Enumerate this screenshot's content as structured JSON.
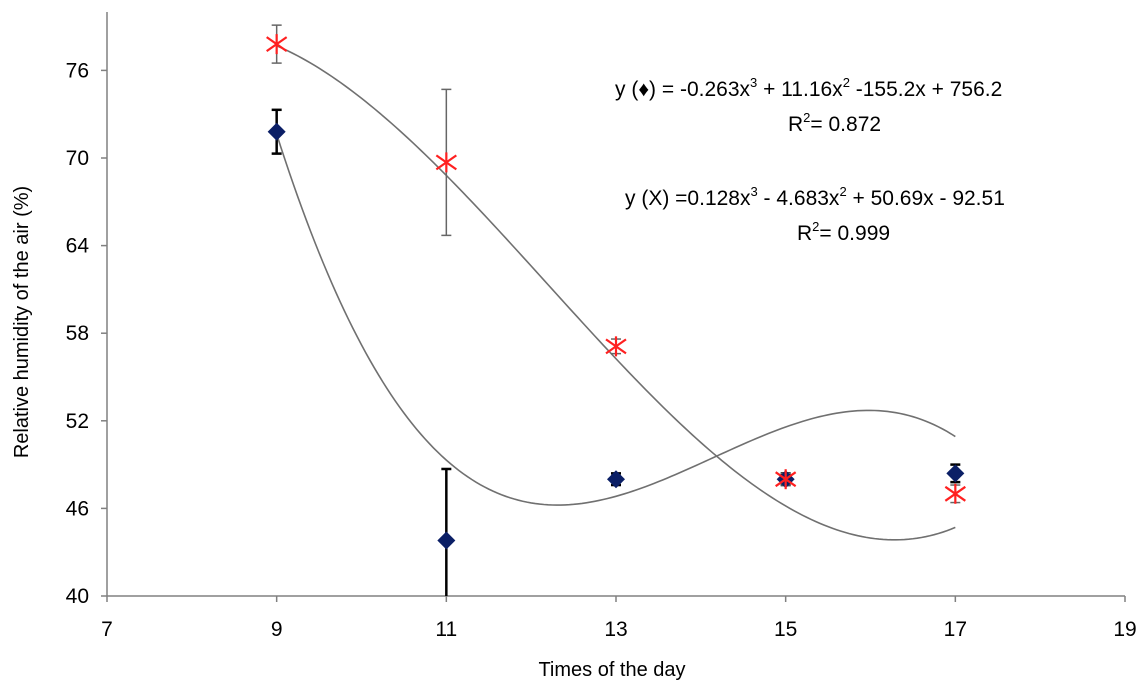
{
  "chart_data": {
    "type": "scatter",
    "title": "",
    "xlabel": "Times of the day",
    "ylabel": "Relative humidity of the air (%)",
    "xlim": [
      7,
      19
    ],
    "ylim": [
      40,
      80
    ],
    "xticks": [
      7,
      9,
      11,
      13,
      15,
      17,
      19
    ],
    "yticks": [
      40,
      46,
      52,
      58,
      64,
      70,
      76
    ],
    "grid": false,
    "legend": "none",
    "series": [
      {
        "marker": "diamond",
        "color": "#0b1f66",
        "errorbar_color": "#000000",
        "x": [
          9,
          11,
          13,
          15,
          17
        ],
        "y": [
          71.8,
          43.8,
          48.0,
          48.0,
          48.4
        ],
        "err": [
          1.5,
          4.9,
          0.4,
          0.4,
          0.6
        ],
        "fit": [
          -0.263,
          11.16,
          -155.2,
          756.2
        ]
      },
      {
        "marker": "star",
        "color": "#ff2020",
        "errorbar_color": "#666666",
        "x": [
          9,
          11,
          13,
          15,
          17
        ],
        "y": [
          77.8,
          69.7,
          57.1,
          48.0,
          47.0
        ],
        "err": [
          1.3,
          5.0,
          0.5,
          0.4,
          0.6
        ],
        "fit": [
          0.128,
          -4.683,
          50.69,
          -92.51
        ]
      }
    ],
    "annotations": {
      "eq1": {
        "prefix": "y (♦) = -0.263x",
        "exp3": "3",
        "mid": " + 11.16x",
        "exp2": "2",
        "rest": " -155.2x + 756.2"
      },
      "r1": {
        "prefix": "R",
        "exp": "2",
        "rest": "= 0.872"
      },
      "eq2": {
        "prefix": "y (X) =0.128x",
        "exp3": "3",
        "mid": " - 4.683x",
        "exp2": "2",
        "rest": " + 50.69x - 92.51"
      },
      "r2": {
        "prefix": "R",
        "exp": "2",
        "rest": "= 0.999"
      }
    }
  }
}
